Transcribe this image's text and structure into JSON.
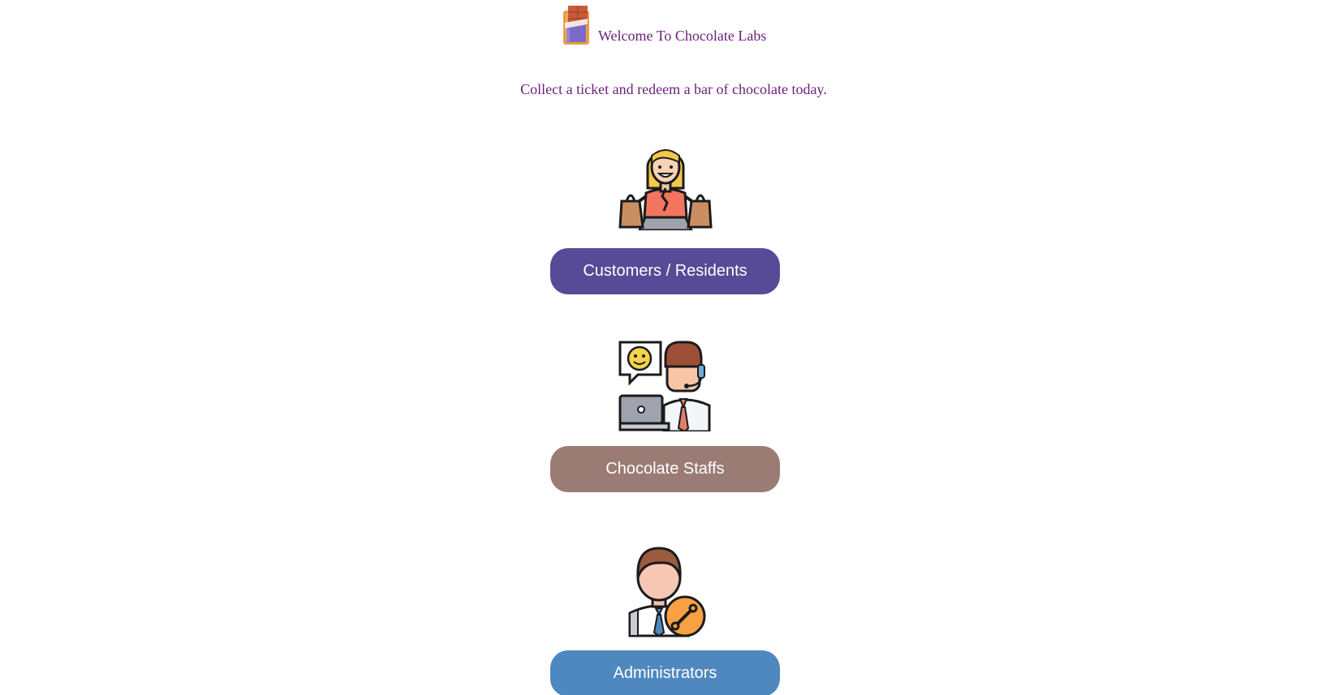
{
  "header": {
    "logo_icon": "chocolate-bar-icon",
    "title": "Welcome To Chocolate Labs"
  },
  "tagline": "Collect a ticket and redeem a bar of chocolate today.",
  "roles": [
    {
      "icon": "shopper-woman-icon",
      "label": "Customers / Residents",
      "color": "#574a96"
    },
    {
      "icon": "support-agent-icon",
      "label": "Chocolate Staffs",
      "color": "#9a7c74"
    },
    {
      "icon": "admin-wrench-icon",
      "label": "Administrators",
      "color": "#4f88be"
    }
  ],
  "colors": {
    "text_accent": "#6b1f7a",
    "background": "#ffffff"
  }
}
